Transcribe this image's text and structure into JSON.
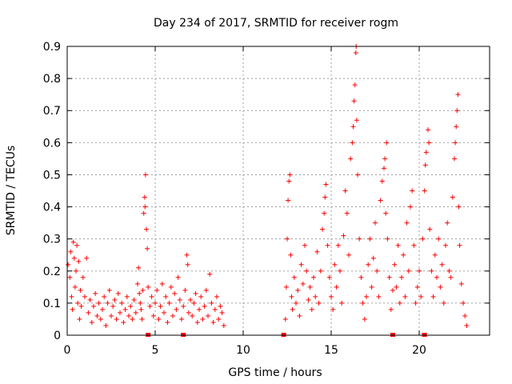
{
  "chart_data": {
    "type": "scatter",
    "title": "Day 234 of 2017, SRMTID for receiver rogm",
    "xlabel": "GPS time / hours",
    "ylabel": "SRMTID / TECUs",
    "xlim": [
      0,
      24
    ],
    "ylim": [
      0,
      0.9
    ],
    "xticks": [
      0,
      5,
      10,
      15,
      20
    ],
    "yticks": [
      0,
      0.1,
      0.2,
      0.3,
      0.4,
      0.5,
      0.6,
      0.7,
      0.8,
      0.9
    ],
    "grid": true,
    "marker": "+",
    "color": "#ff0000",
    "series": [
      {
        "name": "SRMTID",
        "points": [
          [
            0.05,
            0.22
          ],
          [
            0.15,
            0.18
          ],
          [
            0.2,
            0.26
          ],
          [
            0.25,
            0.12
          ],
          [
            0.3,
            0.08
          ],
          [
            0.35,
            0.29
          ],
          [
            0.4,
            0.24
          ],
          [
            0.45,
            0.15
          ],
          [
            0.5,
            0.2
          ],
          [
            0.55,
            0.28
          ],
          [
            0.6,
            0.1
          ],
          [
            0.65,
            0.23
          ],
          [
            0.7,
            0.05
          ],
          [
            0.75,
            0.14
          ],
          [
            0.8,
            0.09
          ],
          [
            0.9,
            0.18
          ],
          [
            1.0,
            0.12
          ],
          [
            1.1,
            0.24
          ],
          [
            1.2,
            0.07
          ],
          [
            1.3,
            0.11
          ],
          [
            1.4,
            0.04
          ],
          [
            1.5,
            0.09
          ],
          [
            1.6,
            0.13
          ],
          [
            1.7,
            0.06
          ],
          [
            1.8,
            0.1
          ],
          [
            1.9,
            0.05
          ],
          [
            2.0,
            0.08
          ],
          [
            2.1,
            0.12
          ],
          [
            2.2,
            0.03
          ],
          [
            2.3,
            0.1
          ],
          [
            2.4,
            0.14
          ],
          [
            2.5,
            0.06
          ],
          [
            2.6,
            0.09
          ],
          [
            2.7,
            0.11
          ],
          [
            2.8,
            0.05
          ],
          [
            2.9,
            0.13
          ],
          [
            3.0,
            0.07
          ],
          [
            3.1,
            0.1
          ],
          [
            3.2,
            0.04
          ],
          [
            3.3,
            0.08
          ],
          [
            3.4,
            0.12
          ],
          [
            3.5,
            0.06
          ],
          [
            3.6,
            0.09
          ],
          [
            3.7,
            0.05
          ],
          [
            3.8,
            0.11
          ],
          [
            3.9,
            0.07
          ],
          [
            4.0,
            0.16
          ],
          [
            4.05,
            0.21
          ],
          [
            4.1,
            0.13
          ],
          [
            4.15,
            0.1
          ],
          [
            4.2,
            0.08
          ],
          [
            4.25,
            0.05
          ],
          [
            4.3,
            0.14
          ],
          [
            4.35,
            0.38
          ],
          [
            4.4,
            0.43
          ],
          [
            4.42,
            0.4
          ],
          [
            4.45,
            0.5
          ],
          [
            4.5,
            0.33
          ],
          [
            4.55,
            0.27
          ],
          [
            4.6,
            0.15
          ],
          [
            4.7,
            0.09
          ],
          [
            4.8,
            0.12
          ],
          [
            4.9,
            0.06
          ],
          [
            5.0,
            0.1
          ],
          [
            5.1,
            0.14
          ],
          [
            5.2,
            0.05
          ],
          [
            5.3,
            0.09
          ],
          [
            5.4,
            0.16
          ],
          [
            5.5,
            0.07
          ],
          [
            5.6,
            0.12
          ],
          [
            5.7,
            0.04
          ],
          [
            5.8,
            0.1
          ],
          [
            5.9,
            0.15
          ],
          [
            6.0,
            0.06
          ],
          [
            6.1,
            0.13
          ],
          [
            6.2,
            0.08
          ],
          [
            6.3,
            0.18
          ],
          [
            6.4,
            0.11
          ],
          [
            6.5,
            0.05
          ],
          [
            6.6,
            0.09
          ],
          [
            6.7,
            0.14
          ],
          [
            6.8,
            0.25
          ],
          [
            6.85,
            0.22
          ],
          [
            6.9,
            0.07
          ],
          [
            7.0,
            0.11
          ],
          [
            7.1,
            0.06
          ],
          [
            7.2,
            0.1
          ],
          [
            7.3,
            0.13
          ],
          [
            7.4,
            0.04
          ],
          [
            7.5,
            0.08
          ],
          [
            7.6,
            0.12
          ],
          [
            7.7,
            0.05
          ],
          [
            7.8,
            0.09
          ],
          [
            7.9,
            0.14
          ],
          [
            8.0,
            0.06
          ],
          [
            8.1,
            0.19
          ],
          [
            8.2,
            0.1
          ],
          [
            8.3,
            0.04
          ],
          [
            8.4,
            0.08
          ],
          [
            8.5,
            0.12
          ],
          [
            8.6,
            0.05
          ],
          [
            8.7,
            0.09
          ],
          [
            8.8,
            0.07
          ],
          [
            8.9,
            0.03
          ],
          [
            12.4,
            0.05
          ],
          [
            12.45,
            0.15
          ],
          [
            12.5,
            0.3
          ],
          [
            12.55,
            0.42
          ],
          [
            12.6,
            0.48
          ],
          [
            12.65,
            0.5
          ],
          [
            12.7,
            0.25
          ],
          [
            12.75,
            0.12
          ],
          [
            12.8,
            0.08
          ],
          [
            12.9,
            0.18
          ],
          [
            13.0,
            0.1
          ],
          [
            13.1,
            0.14
          ],
          [
            13.2,
            0.06
          ],
          [
            13.3,
            0.22
          ],
          [
            13.4,
            0.16
          ],
          [
            13.5,
            0.28
          ],
          [
            13.6,
            0.2
          ],
          [
            13.7,
            0.11
          ],
          [
            13.8,
            0.15
          ],
          [
            13.9,
            0.08
          ],
          [
            14.0,
            0.18
          ],
          [
            14.1,
            0.12
          ],
          [
            14.2,
            0.26
          ],
          [
            14.3,
            0.1
          ],
          [
            14.4,
            0.2
          ],
          [
            14.5,
            0.33
          ],
          [
            14.6,
            0.38
          ],
          [
            14.65,
            0.43
          ],
          [
            14.7,
            0.47
          ],
          [
            14.8,
            0.28
          ],
          [
            14.9,
            0.18
          ],
          [
            15.0,
            0.12
          ],
          [
            15.1,
            0.08
          ],
          [
            15.2,
            0.22
          ],
          [
            15.3,
            0.15
          ],
          [
            15.4,
            0.28
          ],
          [
            15.5,
            0.2
          ],
          [
            15.6,
            0.1
          ],
          [
            15.7,
            0.31
          ],
          [
            15.8,
            0.45
          ],
          [
            15.9,
            0.38
          ],
          [
            16.0,
            0.25
          ],
          [
            16.1,
            0.55
          ],
          [
            16.2,
            0.6
          ],
          [
            16.25,
            0.65
          ],
          [
            16.3,
            0.73
          ],
          [
            16.35,
            0.78
          ],
          [
            16.4,
            0.88
          ],
          [
            16.42,
            0.9
          ],
          [
            16.45,
            0.67
          ],
          [
            16.5,
            0.5
          ],
          [
            16.6,
            0.3
          ],
          [
            16.7,
            0.18
          ],
          [
            16.8,
            0.1
          ],
          [
            16.9,
            0.05
          ],
          [
            17.0,
            0.12
          ],
          [
            17.1,
            0.22
          ],
          [
            17.2,
            0.3
          ],
          [
            17.3,
            0.15
          ],
          [
            17.4,
            0.24
          ],
          [
            17.5,
            0.35
          ],
          [
            17.6,
            0.2
          ],
          [
            17.7,
            0.12
          ],
          [
            17.8,
            0.42
          ],
          [
            17.9,
            0.48
          ],
          [
            18.0,
            0.52
          ],
          [
            18.05,
            0.55
          ],
          [
            18.1,
            0.38
          ],
          [
            18.15,
            0.6
          ],
          [
            18.2,
            0.3
          ],
          [
            18.3,
            0.18
          ],
          [
            18.4,
            0.08
          ],
          [
            18.5,
            0.14
          ],
          [
            18.6,
            0.22
          ],
          [
            18.7,
            0.15
          ],
          [
            18.8,
            0.28
          ],
          [
            18.9,
            0.1
          ],
          [
            19.0,
            0.18
          ],
          [
            19.1,
            0.25
          ],
          [
            19.2,
            0.12
          ],
          [
            19.3,
            0.35
          ],
          [
            19.4,
            0.2
          ],
          [
            19.5,
            0.4
          ],
          [
            19.6,
            0.45
          ],
          [
            19.7,
            0.28
          ],
          [
            19.8,
            0.1
          ],
          [
            19.9,
            0.15
          ],
          [
            20.0,
            0.2
          ],
          [
            20.1,
            0.12
          ],
          [
            20.2,
            0.3
          ],
          [
            20.3,
            0.45
          ],
          [
            20.35,
            0.53
          ],
          [
            20.4,
            0.57
          ],
          [
            20.5,
            0.64
          ],
          [
            20.55,
            0.6
          ],
          [
            20.6,
            0.33
          ],
          [
            20.7,
            0.2
          ],
          [
            20.8,
            0.12
          ],
          [
            20.9,
            0.25
          ],
          [
            21.0,
            0.18
          ],
          [
            21.1,
            0.3
          ],
          [
            21.2,
            0.15
          ],
          [
            21.3,
            0.22
          ],
          [
            21.4,
            0.1
          ],
          [
            21.5,
            0.28
          ],
          [
            21.6,
            0.35
          ],
          [
            21.7,
            0.2
          ],
          [
            21.8,
            0.18
          ],
          [
            21.9,
            0.43
          ],
          [
            22.0,
            0.55
          ],
          [
            22.05,
            0.6
          ],
          [
            22.1,
            0.65
          ],
          [
            22.15,
            0.7
          ],
          [
            22.2,
            0.75
          ],
          [
            22.25,
            0.4
          ],
          [
            22.3,
            0.28
          ],
          [
            22.4,
            0.16
          ],
          [
            22.5,
            0.1
          ],
          [
            22.6,
            0.06
          ],
          [
            22.7,
            0.03
          ]
        ]
      }
    ],
    "hour_markers": [
      4.6,
      6.6,
      12.3,
      18.5,
      20.3
    ]
  }
}
